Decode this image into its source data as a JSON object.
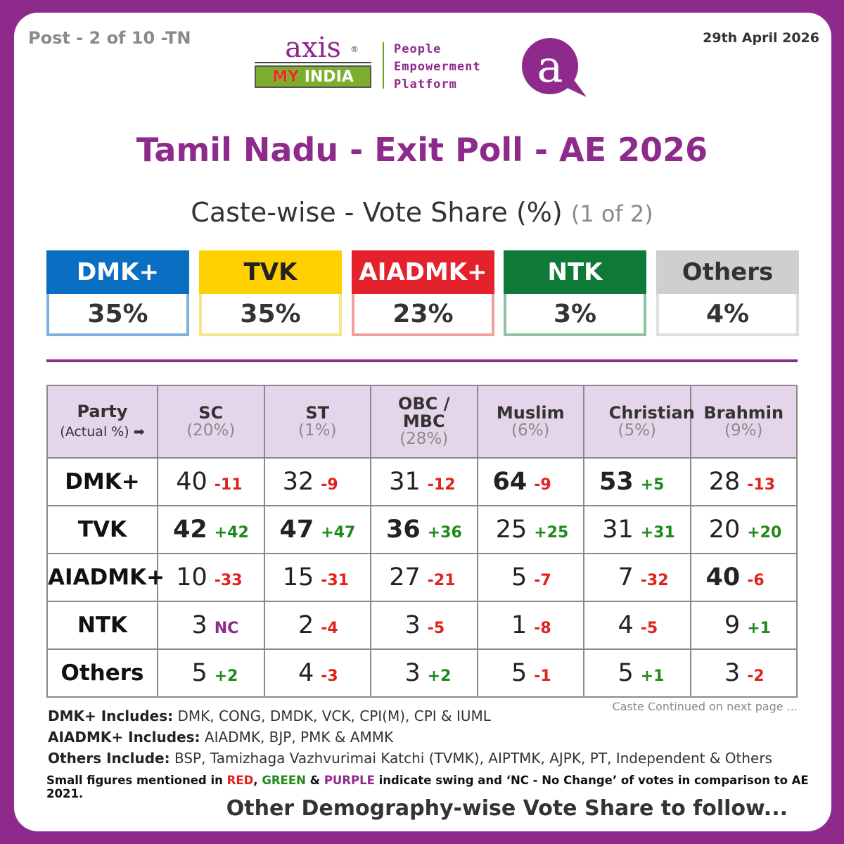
{
  "header": {
    "post_label": "Post - 2 of 10 -TN",
    "date": "29th April 2026",
    "logo_axis": "axis",
    "logo_reg": "®",
    "logo_my": "MY",
    "logo_india": " INDIA",
    "tagline": [
      "People",
      "Empowerment",
      "Platform"
    ],
    "logo_letter": "a"
  },
  "title": "Tamil Nadu - Exit Poll - AE 2026",
  "subtitle": "Caste-wise - Vote Share (%)",
  "subtitle_part": "(1 of 2)",
  "summary": [
    {
      "party": "DMK+",
      "value": "35%",
      "color": "#0a6fc2",
      "border": "#7fb0dc",
      "text_color": "#ffffff"
    },
    {
      "party": "TVK",
      "value": "35%",
      "color": "#ffd000",
      "border": "#f5e48a",
      "text_color": "#222222"
    },
    {
      "party": "AIADMK+",
      "value": "23%",
      "color": "#e3222b",
      "border": "#f0a0a0",
      "text_color": "#ffffff"
    },
    {
      "party": "NTK",
      "value": "3%",
      "color": "#0f7a37",
      "border": "#8fc2a0",
      "text_color": "#ffffff"
    },
    {
      "party": "Others",
      "value": "4%",
      "color": "#cfcfcf",
      "border": "#dedede",
      "text_color": "#333333"
    }
  ],
  "table": {
    "party_header": "Party",
    "party_sub": "(Actual %)",
    "columns": [
      {
        "name": "SC",
        "pct": "(20%)"
      },
      {
        "name": "ST",
        "pct": "(1%)"
      },
      {
        "name": "OBC / MBC",
        "pct": "(28%)"
      },
      {
        "name": "Muslim",
        "pct": "(6%)"
      },
      {
        "name": "Christian",
        "pct": "(5%)"
      },
      {
        "name": "Brahmin",
        "pct": "(9%)"
      }
    ],
    "rows": [
      {
        "party": "DMK+",
        "cells": [
          {
            "v": "40",
            "s": "-11",
            "t": "neg",
            "b": false
          },
          {
            "v": "32",
            "s": "-9",
            "t": "neg",
            "b": false
          },
          {
            "v": "31",
            "s": "-12",
            "t": "neg",
            "b": false
          },
          {
            "v": "64",
            "s": "-9",
            "t": "neg",
            "b": true
          },
          {
            "v": "53",
            "s": "+5",
            "t": "pos",
            "b": true
          },
          {
            "v": "28",
            "s": "-13",
            "t": "neg",
            "b": false
          }
        ]
      },
      {
        "party": "TVK",
        "cells": [
          {
            "v": "42",
            "s": "+42",
            "t": "pos",
            "b": true
          },
          {
            "v": "47",
            "s": "+47",
            "t": "pos",
            "b": true
          },
          {
            "v": "36",
            "s": "+36",
            "t": "pos",
            "b": true
          },
          {
            "v": "25",
            "s": "+25",
            "t": "pos",
            "b": false
          },
          {
            "v": "31",
            "s": "+31",
            "t": "pos",
            "b": false
          },
          {
            "v": "20",
            "s": "+20",
            "t": "pos",
            "b": false
          }
        ]
      },
      {
        "party": "AIADMK+",
        "cells": [
          {
            "v": "10",
            "s": "-33",
            "t": "neg",
            "b": false
          },
          {
            "v": "15",
            "s": "-31",
            "t": "neg",
            "b": false
          },
          {
            "v": "27",
            "s": "-21",
            "t": "neg",
            "b": false
          },
          {
            "v": "5",
            "s": "-7",
            "t": "neg",
            "b": false
          },
          {
            "v": "7",
            "s": "-32",
            "t": "neg",
            "b": false
          },
          {
            "v": "40",
            "s": "-6",
            "t": "neg",
            "b": true
          }
        ]
      },
      {
        "party": "NTK",
        "cells": [
          {
            "v": "3",
            "s": "NC",
            "t": "nc",
            "b": false
          },
          {
            "v": "2",
            "s": "-4",
            "t": "neg",
            "b": false
          },
          {
            "v": "3",
            "s": "-5",
            "t": "neg",
            "b": false
          },
          {
            "v": "1",
            "s": "-8",
            "t": "neg",
            "b": false
          },
          {
            "v": "4",
            "s": "-5",
            "t": "neg",
            "b": false
          },
          {
            "v": "9",
            "s": "+1",
            "t": "pos",
            "b": false
          }
        ]
      },
      {
        "party": "Others",
        "cells": [
          {
            "v": "5",
            "s": "+2",
            "t": "pos",
            "b": false
          },
          {
            "v": "4",
            "s": "-3",
            "t": "neg",
            "b": false
          },
          {
            "v": "3",
            "s": "+2",
            "t": "pos",
            "b": false
          },
          {
            "v": "5",
            "s": "-1",
            "t": "neg",
            "b": false
          },
          {
            "v": "5",
            "s": "+1",
            "t": "pos",
            "b": false
          },
          {
            "v": "3",
            "s": "-2",
            "t": "neg",
            "b": false
          }
        ]
      }
    ]
  },
  "continued_note": "Caste Continued on next page ...",
  "notes": [
    {
      "label": "DMK+ Includes:",
      "text": " DMK, CONG, DMDK, VCK, CPI(M), CPI & IUML"
    },
    {
      "label": "AIADMK+ Includes:",
      "text": " AIADMK, BJP, PMK & AMMK"
    },
    {
      "label": "Others Include:",
      "text": " BSP, Tamizhaga Vazhvurimai Katchi (TVMK), AIPTMK, AJPK, PT, Independent & Others"
    }
  ],
  "legend_note": {
    "pre": "Small figures mentioned in ",
    "red": "RED",
    "comma": ", ",
    "green": "GREEN",
    "amp": " & ",
    "purple": "PURPLE",
    "post": " indicate swing and ‘NC - No Change’ of votes in comparison to AE 2021."
  },
  "footer": "Other Demography-wise Vote Share to follow...",
  "colors": {
    "frame": "#8e2a8b",
    "header_bg": "#e5d5ea",
    "negative": "#e0221c",
    "positive": "#1d8a1a",
    "no_change": "#8e2a8b"
  },
  "chart_data": {
    "type": "table",
    "title": "Tamil Nadu - Exit Poll - AE 2026",
    "subtitle": "Caste-wise - Vote Share (%)",
    "overall": {
      "DMK+": 35,
      "TVK": 35,
      "AIADMK+": 23,
      "NTK": 3,
      "Others": 4
    },
    "categories": [
      "SC",
      "ST",
      "OBC / MBC",
      "Muslim",
      "Christian",
      "Brahmin"
    ],
    "category_actual_pct": [
      20,
      1,
      28,
      6,
      5,
      9
    ],
    "series": [
      {
        "name": "DMK+",
        "values": [
          40,
          32,
          31,
          64,
          53,
          28
        ],
        "swing": [
          -11,
          -9,
          -12,
          -9,
          5,
          -13
        ]
      },
      {
        "name": "TVK",
        "values": [
          42,
          47,
          36,
          25,
          31,
          20
        ],
        "swing": [
          42,
          47,
          36,
          25,
          31,
          20
        ]
      },
      {
        "name": "AIADMK+",
        "values": [
          10,
          15,
          27,
          5,
          7,
          40
        ],
        "swing": [
          -33,
          -31,
          -21,
          -7,
          -32,
          -6
        ]
      },
      {
        "name": "NTK",
        "values": [
          3,
          2,
          3,
          1,
          4,
          9
        ],
        "swing": [
          "NC",
          -4,
          -5,
          -8,
          -5,
          1
        ]
      },
      {
        "name": "Others",
        "values": [
          5,
          4,
          3,
          5,
          5,
          3
        ],
        "swing": [
          2,
          -3,
          2,
          -1,
          1,
          -2
        ]
      }
    ]
  }
}
